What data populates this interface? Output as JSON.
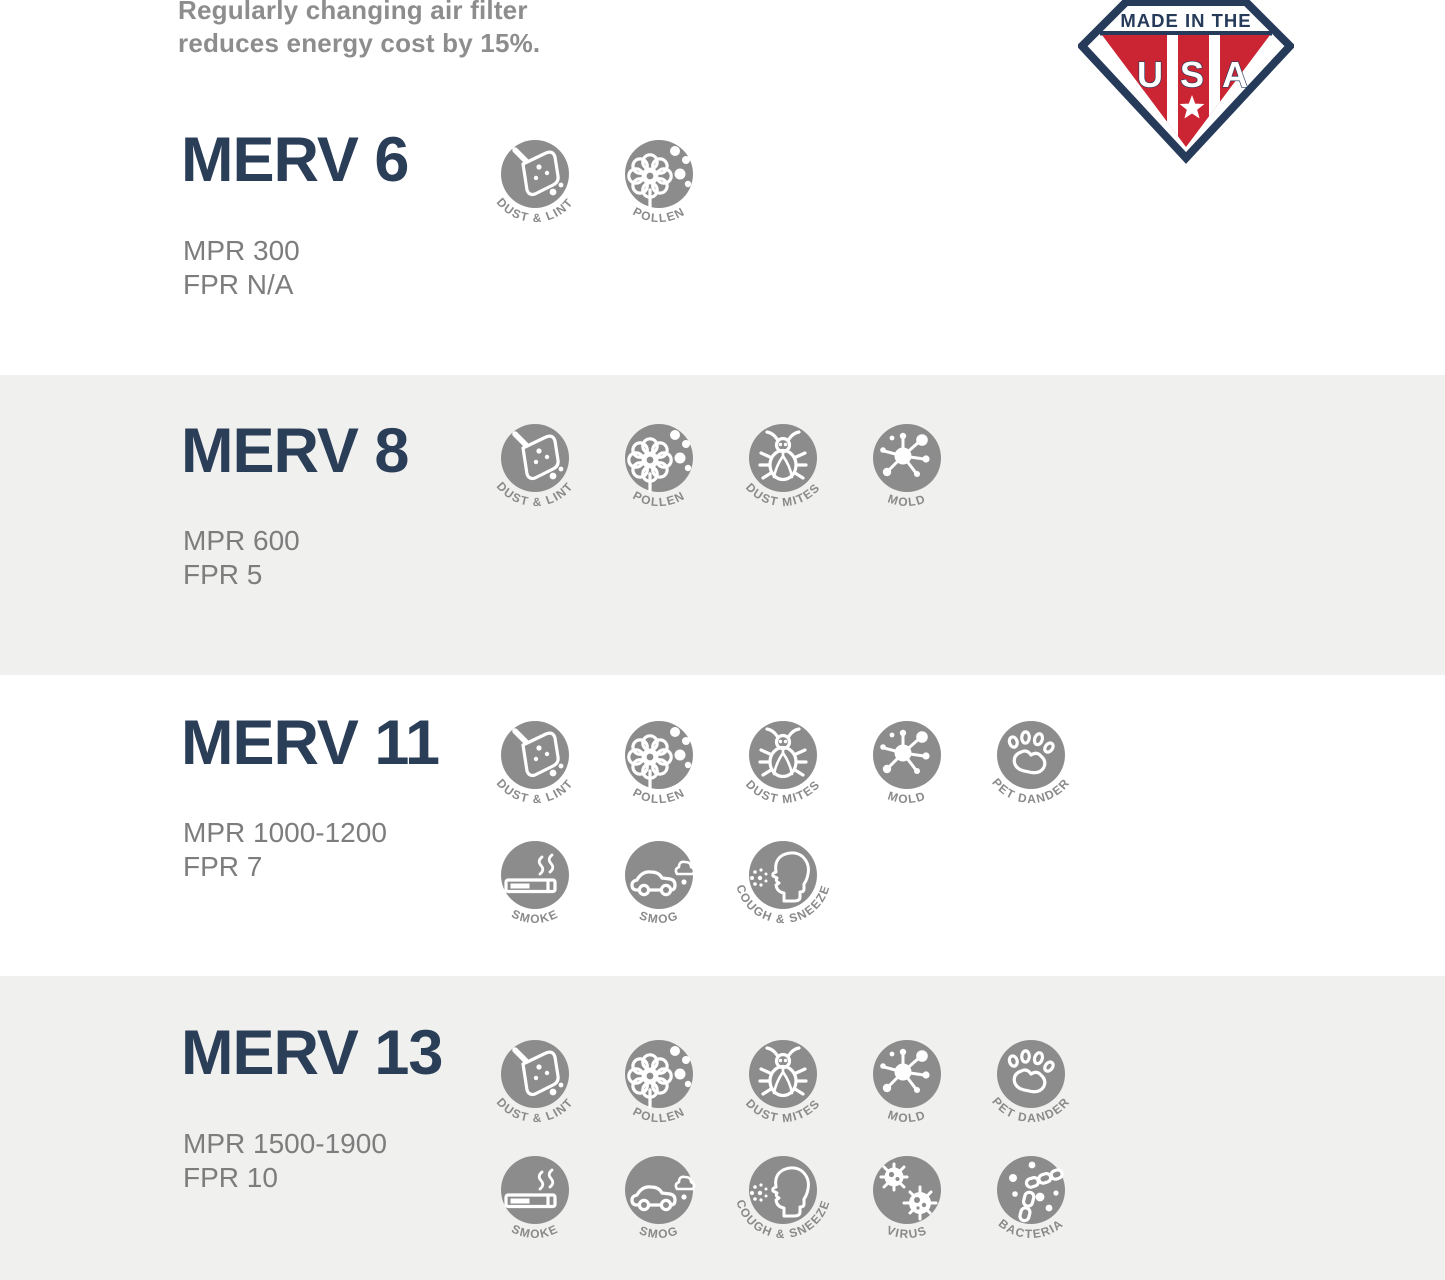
{
  "header": {
    "line1": "Regularly changing air filter",
    "line2": "reduces energy cost by 15%."
  },
  "badge": {
    "top_text": "MADE IN THE",
    "letters": [
      "U",
      "S",
      "A"
    ],
    "colors": {
      "navy": "#263a5a",
      "red": "#cb2433",
      "white": "#ffffff"
    }
  },
  "colors": {
    "title_navy": "#2b3e57",
    "text_gray": "#7d7d7d",
    "header_gray": "#8d8d8d",
    "icon_gray": "#8c8c8c",
    "band_gray": "#f0f0ef"
  },
  "icon_labels": {
    "dust-lint": "DUST & LINT",
    "pollen": "POLLEN",
    "dust-mites": "DUST MITES",
    "mold": "MOLD",
    "pet-dander": "PET DANDER",
    "smoke": "SMOKE",
    "smog": "SMOG",
    "cough-sneeze": "COUGH & SNEEZE",
    "virus": "VIRUS",
    "bacteria": "BACTERIA"
  },
  "sections": [
    {
      "title": "MERV 6",
      "mpr": "MPR 300",
      "fpr": "FPR N/A",
      "icon_rows": [
        [
          "dust-lint",
          "pollen"
        ]
      ]
    },
    {
      "title": "MERV 8",
      "mpr": "MPR 600",
      "fpr": "FPR 5",
      "icon_rows": [
        [
          "dust-lint",
          "pollen",
          "dust-mites",
          "mold"
        ]
      ]
    },
    {
      "title": "MERV 11",
      "mpr": "MPR 1000-1200",
      "fpr": "FPR 7",
      "icon_rows": [
        [
          "dust-lint",
          "pollen",
          "dust-mites",
          "mold",
          "pet-dander"
        ],
        [
          "smoke",
          "smog",
          "cough-sneeze"
        ]
      ]
    },
    {
      "title": "MERV 13",
      "mpr": "MPR 1500-1900",
      "fpr": "FPR 10",
      "icon_rows": [
        [
          "dust-lint",
          "pollen",
          "dust-mites",
          "mold",
          "pet-dander"
        ],
        [
          "smoke",
          "smog",
          "cough-sneeze",
          "virus",
          "bacteria"
        ]
      ]
    }
  ]
}
